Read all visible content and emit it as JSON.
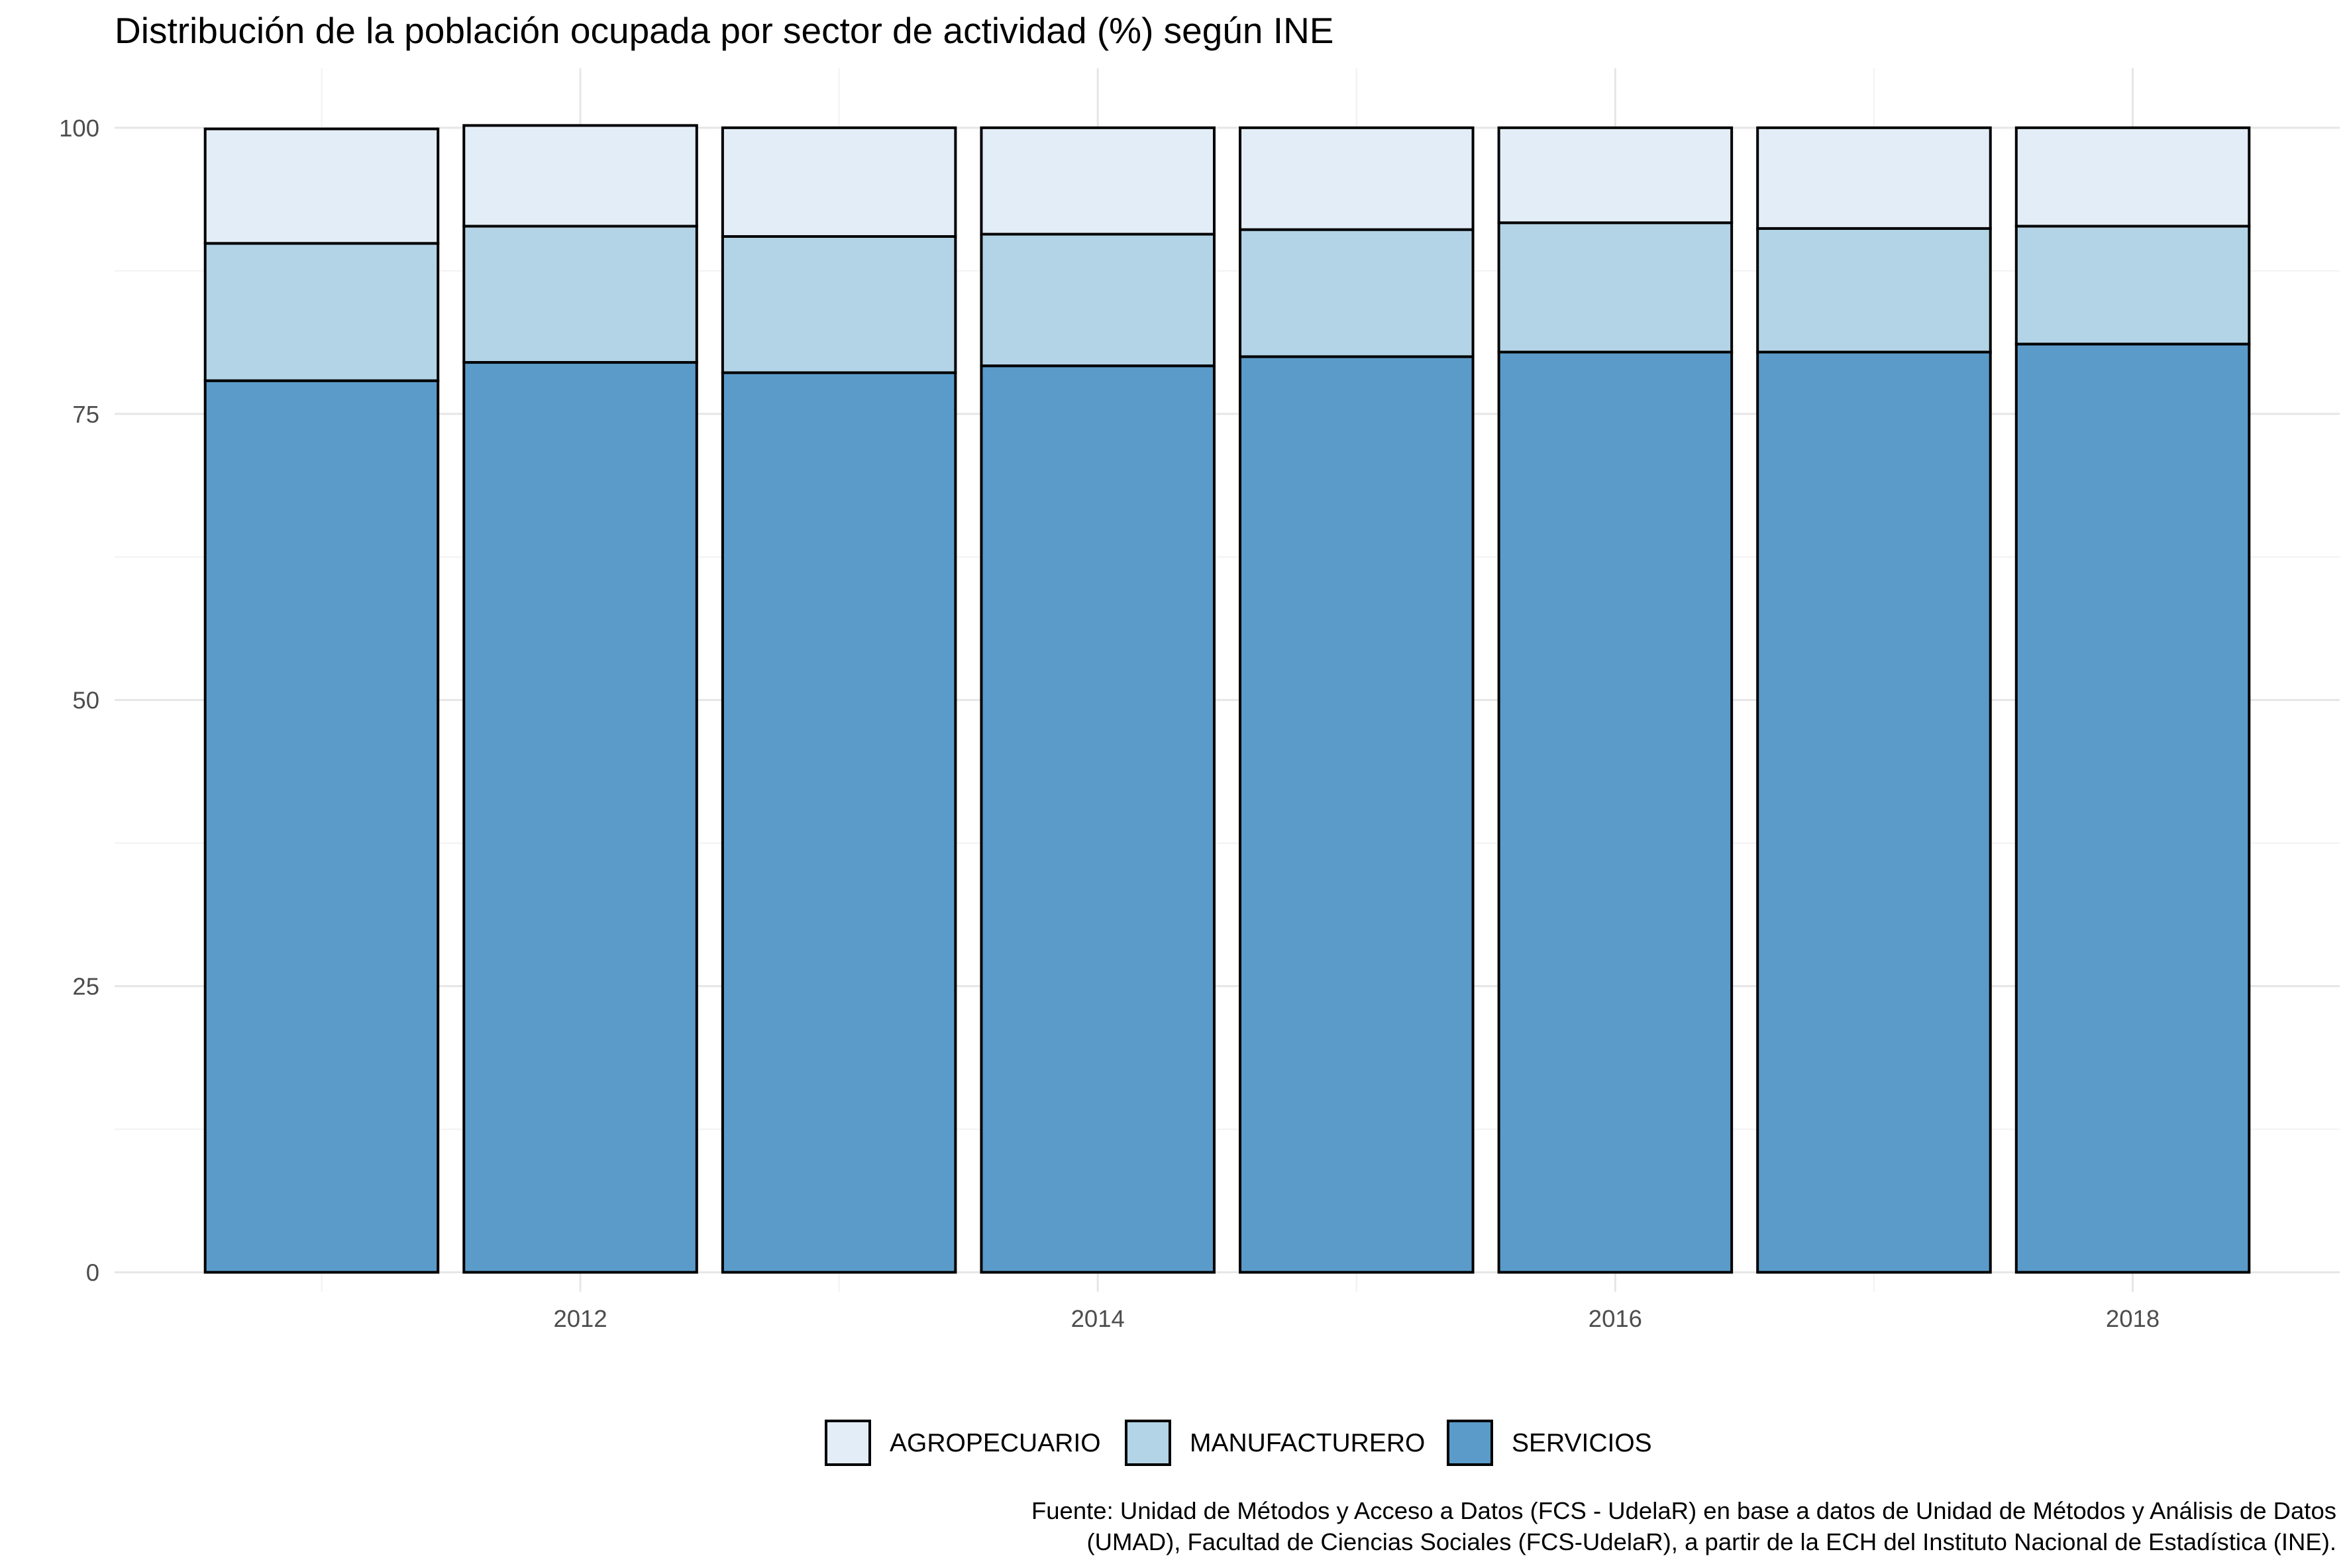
{
  "chart_data": {
    "type": "bar",
    "stacked": true,
    "title": "Distribución de la población ocupada por sector de actividad (%) según INE",
    "xlabel": "",
    "ylabel": "",
    "x": [
      2011,
      2012,
      2013,
      2014,
      2015,
      2016,
      2017,
      2018
    ],
    "x_ticks": [
      "2012",
      "2014",
      "2016",
      "2018"
    ],
    "x_tick_values": [
      2012,
      2014,
      2016,
      2018
    ],
    "xlim": [
      2010.2,
      2018.8
    ],
    "ylim": [
      -1.7,
      105.2
    ],
    "y_ticks": [
      "0",
      "25",
      "50",
      "75",
      "100"
    ],
    "y_tick_values": [
      0,
      25,
      50,
      75,
      100
    ],
    "grid": true,
    "legend_position": "bottom",
    "series": [
      {
        "name": "SERVICIOS",
        "color": "#5b9bc9",
        "values": [
          77.9,
          79.5,
          78.6,
          79.2,
          80.0,
          80.4,
          80.4,
          81.1
        ]
      },
      {
        "name": "MANUFACTURERO",
        "color": "#b3d4e6",
        "values": [
          12.0,
          11.9,
          11.9,
          11.5,
          11.1,
          11.3,
          10.8,
          10.3
        ]
      },
      {
        "name": "AGROPECUARIO",
        "color": "#e3edf7",
        "values": [
          10.0,
          8.8,
          9.5,
          9.3,
          8.9,
          8.3,
          8.8,
          8.6
        ]
      }
    ],
    "legend": [
      {
        "name": "AGROPECUARIO",
        "color": "#e3edf7"
      },
      {
        "name": "MANUFACTURERO",
        "color": "#b3d4e6"
      },
      {
        "name": "SERVICIOS",
        "color": "#5b9bc9"
      }
    ],
    "caption": [
      "Fuente: Unidad de Métodos y Acceso a Datos (FCS - UdelaR) en base a datos de Unidad de Métodos y Análisis de Datos",
      "(UMAD), Facultad de Ciencias Sociales (FCS-UdelaR), a partir de la ECH del Instituto Nacional de Estadística (INE)."
    ]
  }
}
